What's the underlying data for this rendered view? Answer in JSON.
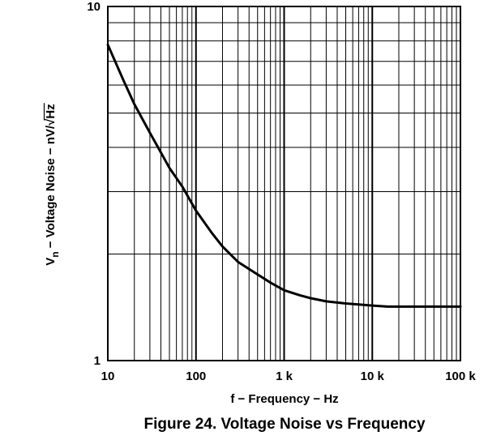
{
  "chart_data": {
    "type": "line",
    "title": "Figure 24. Voltage Noise vs Frequency",
    "xlabel": "f − Frequency − Hz",
    "ylabel": {
      "prefix": "V",
      "subscript": "n",
      "middle": " − Voltage Noise − nV/",
      "radicand": "Hz"
    },
    "xscale": "log",
    "yscale": "log",
    "xlim": [
      10,
      100000
    ],
    "ylim": [
      1,
      10
    ],
    "grid": true,
    "x_ticks": [
      {
        "value": 10,
        "label": "10"
      },
      {
        "value": 100,
        "label": "100"
      },
      {
        "value": 1000,
        "label": "1 k"
      },
      {
        "value": 10000,
        "label": "10 k"
      },
      {
        "value": 100000,
        "label": "100 k"
      }
    ],
    "y_ticks": [
      {
        "value": 1,
        "label": "1"
      },
      {
        "value": 10,
        "label": "10"
      }
    ],
    "series": [
      {
        "x": [
          10,
          15,
          20,
          30,
          50,
          70,
          100,
          150,
          200,
          300,
          500,
          700,
          1000,
          1500,
          2000,
          3000,
          5000,
          7000,
          10000,
          15000,
          20000,
          30000,
          50000,
          70000,
          100000
        ],
        "y": [
          7.8,
          6.2,
          5.3,
          4.4,
          3.5,
          3.1,
          2.65,
          2.3,
          2.1,
          1.9,
          1.75,
          1.66,
          1.58,
          1.53,
          1.5,
          1.47,
          1.45,
          1.44,
          1.43,
          1.42,
          1.42,
          1.42,
          1.42,
          1.42,
          1.42
        ]
      }
    ]
  }
}
